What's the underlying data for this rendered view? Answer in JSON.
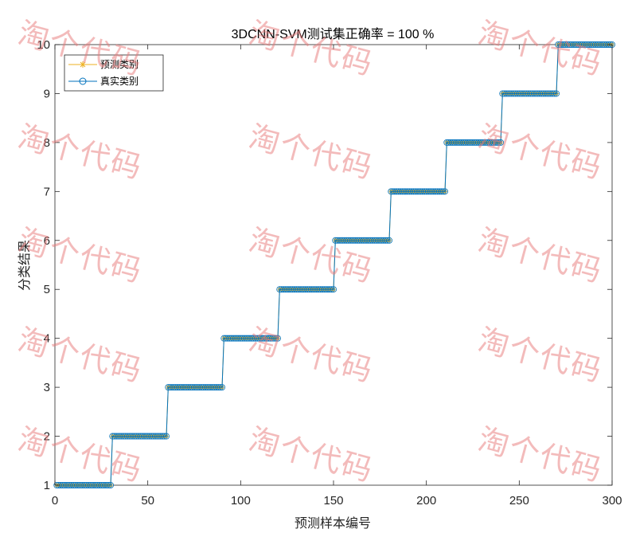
{
  "chart_data": {
    "type": "line",
    "title": "3DCNN-SVM测试集正确率 = 100 %",
    "xlabel": "预测样本编号",
    "ylabel": "分类结果",
    "xlim": [
      0,
      300
    ],
    "ylim": [
      1,
      10
    ],
    "xticks": [
      "0",
      "50",
      "100",
      "150",
      "200",
      "250",
      "300"
    ],
    "yticks": [
      "1",
      "2",
      "3",
      "4",
      "5",
      "6",
      "7",
      "8",
      "9",
      "10"
    ],
    "legend_position": "top-left",
    "grid": false,
    "samples_per_class": 30,
    "classes": [
      1,
      2,
      3,
      4,
      5,
      6,
      7,
      8,
      9,
      10
    ],
    "series": [
      {
        "name": "预测类别",
        "marker": "star",
        "color": "#EDB120"
      },
      {
        "name": "真实类别",
        "marker": "circle",
        "color": "#0072BD"
      }
    ]
  },
  "watermark": {
    "text": "淘个代码"
  }
}
